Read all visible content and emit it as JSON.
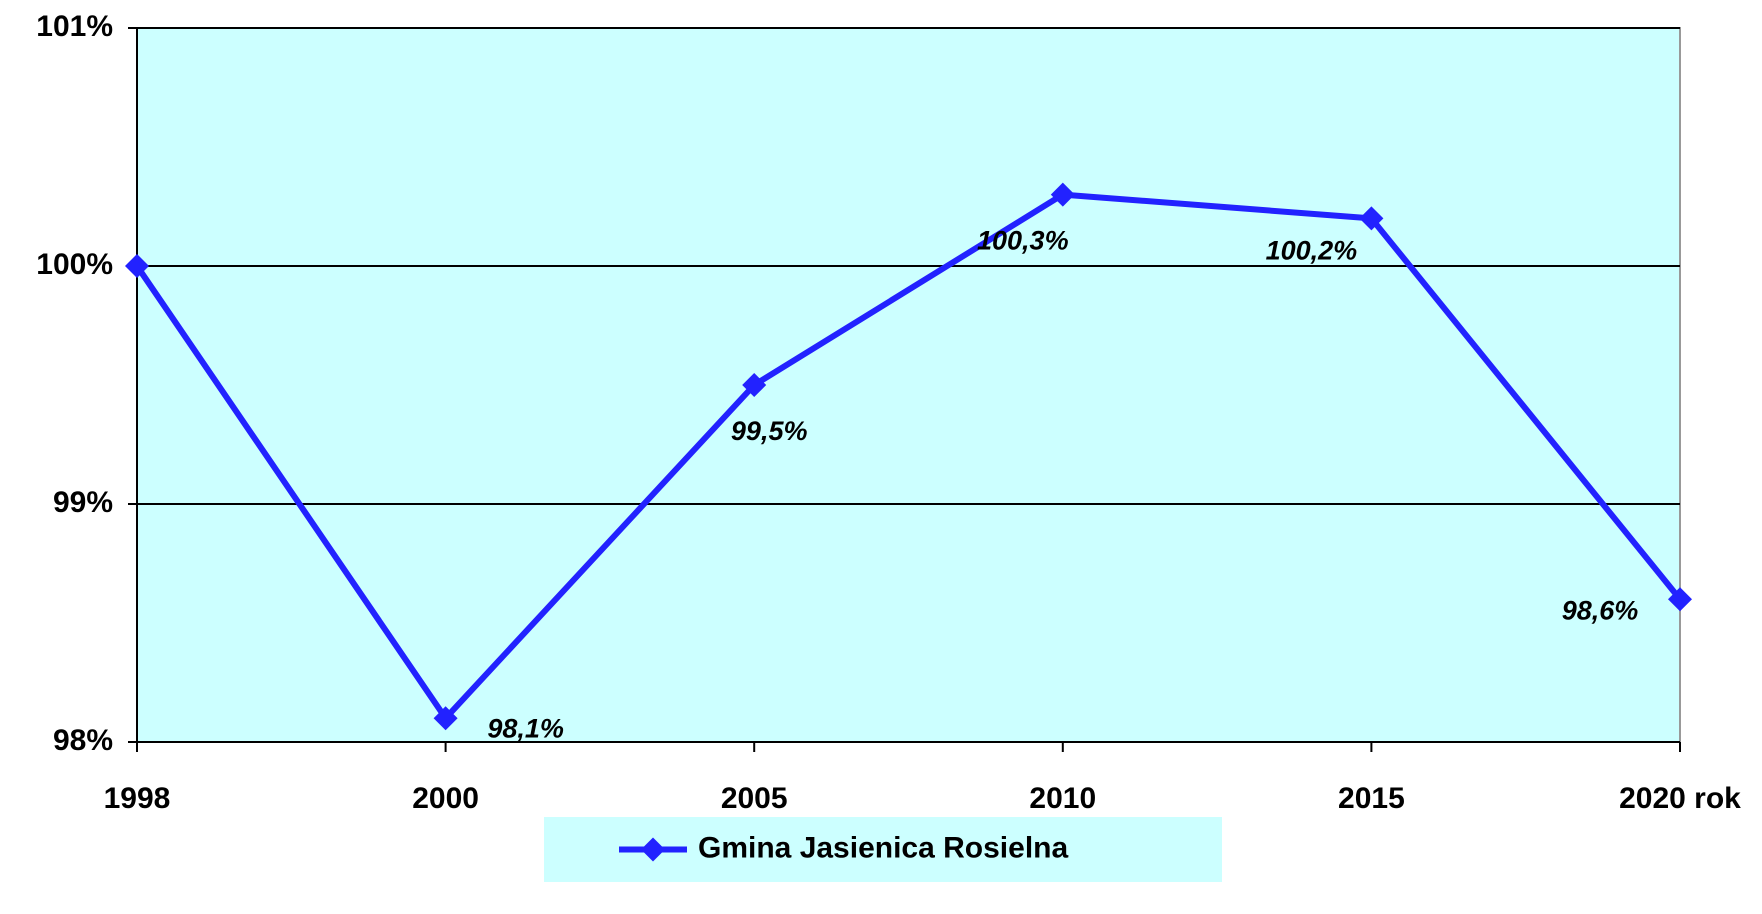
{
  "chart_data": {
    "type": "line",
    "categories": [
      "1998",
      "2000",
      "2005",
      "2010",
      "2015",
      "2020 rok"
    ],
    "series": [
      {
        "name": "Gmina Jasienica Rosielna",
        "color": "#2222ff",
        "values": [
          100,
          98.1,
          99.5,
          100.3,
          100.2,
          98.6
        ],
        "value_labels": [
          null,
          "98,1%",
          "99,5%",
          "100,3%",
          "100,2%",
          "98,6%"
        ]
      }
    ],
    "ylim": [
      98,
      101
    ],
    "yticks": [
      {
        "value": 98,
        "label": "98%"
      },
      {
        "value": 99,
        "label": "99%"
      },
      {
        "value": 100,
        "label": "100%"
      },
      {
        "value": 101,
        "label": "101%"
      }
    ],
    "grid": true,
    "legend": "bottom",
    "background": "#ccffff"
  }
}
